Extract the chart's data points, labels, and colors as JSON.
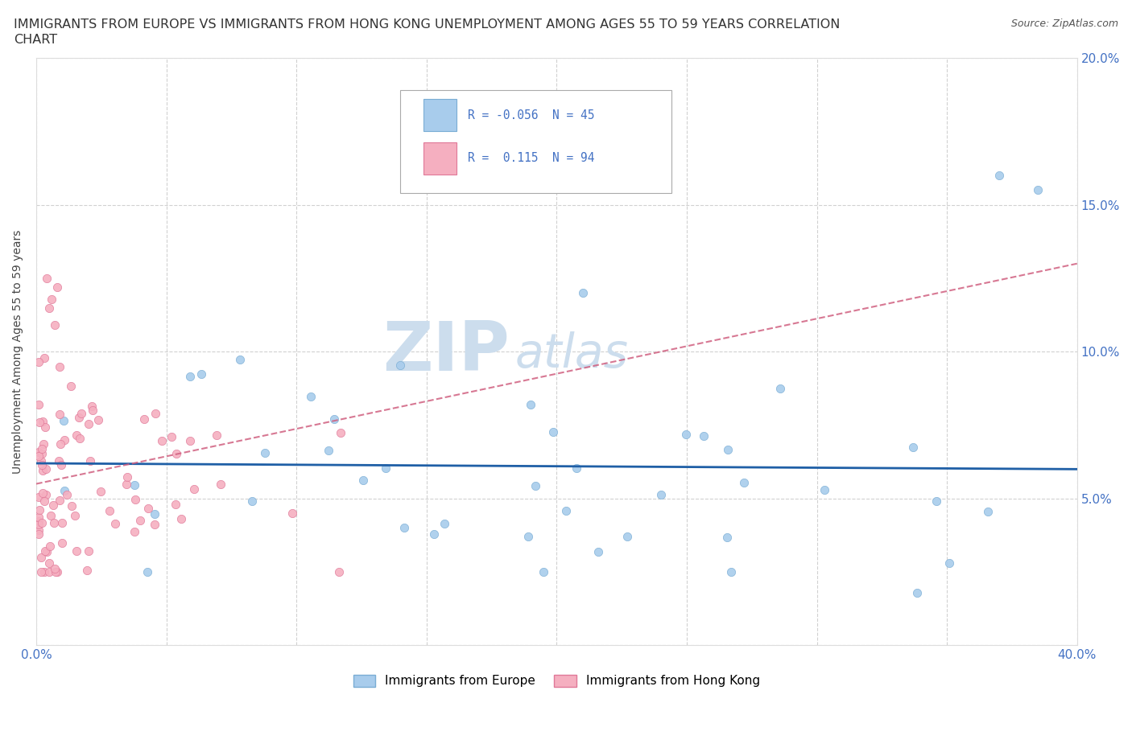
{
  "title_line1": "IMMIGRANTS FROM EUROPE VS IMMIGRANTS FROM HONG KONG UNEMPLOYMENT AMONG AGES 55 TO 59 YEARS CORRELATION",
  "title_line2": "CHART",
  "source": "Source: ZipAtlas.com",
  "ylabel": "Unemployment Among Ages 55 to 59 years",
  "xlim": [
    0.0,
    0.4
  ],
  "ylim": [
    0.0,
    0.2
  ],
  "europe_color": "#a8ccec",
  "europe_edge": "#7aadd4",
  "hk_color": "#f5afc0",
  "hk_edge": "#e07898",
  "europe_trend_color": "#1f5fa6",
  "hk_trend_color": "#d06080",
  "europe_R": -0.056,
  "europe_N": 45,
  "hk_R": 0.115,
  "hk_N": 94,
  "watermark_zip": "ZIP",
  "watermark_atlas": "atlas",
  "watermark_color": "#ccdded",
  "background_color": "#ffffff",
  "grid_color": "#cccccc",
  "tick_color": "#4472c4",
  "title_fontsize": 11.5,
  "source_fontsize": 9,
  "axis_label_fontsize": 10,
  "tick_fontsize": 11,
  "legend_fontsize": 11
}
